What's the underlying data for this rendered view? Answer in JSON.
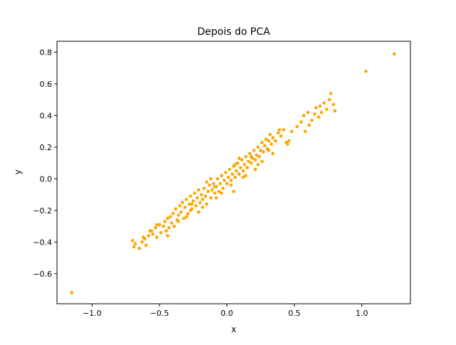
{
  "chart_data": {
    "type": "scatter",
    "title": "Depois do PCA",
    "xlabel": "x",
    "ylabel": "y",
    "xlim": [
      -1.26,
      1.36
    ],
    "ylim": [
      -0.79,
      0.87
    ],
    "grid": false,
    "marker_color": "#ffa500",
    "xticks": [
      {
        "value": -1.0,
        "label": "−1.0"
      },
      {
        "value": -0.5,
        "label": "−0.5"
      },
      {
        "value": 0.0,
        "label": "0.0"
      },
      {
        "value": 0.5,
        "label": "0.5"
      },
      {
        "value": 1.0,
        "label": "1.0"
      }
    ],
    "yticks": [
      {
        "value": -0.6,
        "label": "−0.6"
      },
      {
        "value": -0.4,
        "label": "−0.4"
      },
      {
        "value": -0.2,
        "label": "−0.2"
      },
      {
        "value": 0.0,
        "label": "0.0"
      },
      {
        "value": 0.2,
        "label": "0.2"
      },
      {
        "value": 0.4,
        "label": "0.4"
      },
      {
        "value": 0.6,
        "label": "0.6"
      },
      {
        "value": 0.8,
        "label": "0.8"
      }
    ],
    "points": [
      [
        -1.15,
        -0.72
      ],
      [
        1.03,
        0.68
      ],
      [
        1.24,
        0.79
      ],
      [
        -0.7,
        -0.39
      ],
      [
        -0.69,
        -0.43
      ],
      [
        -0.68,
        -0.41
      ],
      [
        -0.65,
        -0.44
      ],
      [
        -0.63,
        -0.4
      ],
      [
        -0.62,
        -0.37
      ],
      [
        -0.6,
        -0.42
      ],
      [
        -0.58,
        -0.36
      ],
      [
        -0.57,
        -0.33
      ],
      [
        -0.55,
        -0.35
      ],
      [
        -0.53,
        -0.31
      ],
      [
        -0.52,
        -0.37
      ],
      [
        -0.5,
        -0.29
      ],
      [
        -0.49,
        -0.34
      ],
      [
        -0.47,
        -0.3
      ],
      [
        -0.46,
        -0.27
      ],
      [
        -0.45,
        -0.33
      ],
      [
        -0.44,
        -0.25
      ],
      [
        -0.43,
        -0.31
      ],
      [
        -0.42,
        -0.24
      ],
      [
        -0.41,
        -0.28
      ],
      [
        -0.4,
        -0.22
      ],
      [
        -0.39,
        -0.3
      ],
      [
        -0.38,
        -0.19
      ],
      [
        -0.37,
        -0.26
      ],
      [
        -0.36,
        -0.23
      ],
      [
        -0.35,
        -0.17
      ],
      [
        -0.34,
        -0.21
      ],
      [
        -0.33,
        -0.15
      ],
      [
        -0.32,
        -0.25
      ],
      [
        -0.31,
        -0.18
      ],
      [
        -0.3,
        -0.13
      ],
      [
        -0.29,
        -0.22
      ],
      [
        -0.28,
        -0.16
      ],
      [
        -0.27,
        -0.11
      ],
      [
        -0.26,
        -0.19
      ],
      [
        -0.25,
        -0.14
      ],
      [
        -0.24,
        -0.09
      ],
      [
        -0.23,
        -0.17
      ],
      [
        -0.22,
        -0.12
      ],
      [
        -0.21,
        -0.07
      ],
      [
        -0.2,
        -0.15
      ],
      [
        -0.19,
        -0.1
      ],
      [
        -0.18,
        -0.13
      ],
      [
        -0.17,
        -0.06
      ],
      [
        -0.16,
        -0.11
      ],
      [
        -0.15,
        -0.16
      ],
      [
        -0.14,
        -0.08
      ],
      [
        -0.13,
        -0.04
      ],
      [
        -0.12,
        -0.12
      ],
      [
        -0.11,
        -0.07
      ],
      [
        -0.1,
        -0.03
      ],
      [
        -0.09,
        -0.09
      ],
      [
        -0.08,
        -0.05
      ],
      [
        -0.07,
        0.0
      ],
      [
        -0.06,
        -0.08
      ],
      [
        -0.05,
        -0.03
      ],
      [
        -0.04,
        0.02
      ],
      [
        -0.03,
        -0.06
      ],
      [
        -0.02,
        -0.01
      ],
      [
        -0.01,
        0.04
      ],
      [
        0.0,
        -0.03
      ],
      [
        0.01,
        0.01
      ],
      [
        0.02,
        0.06
      ],
      [
        0.03,
        -0.01
      ],
      [
        0.04,
        0.03
      ],
      [
        0.05,
        0.08
      ],
      [
        0.06,
        0.01
      ],
      [
        0.07,
        0.05
      ],
      [
        0.08,
        0.1
      ],
      [
        0.09,
        0.03
      ],
      [
        0.1,
        0.07
      ],
      [
        0.11,
        0.12
      ],
      [
        0.12,
        0.05
      ],
      [
        0.13,
        0.09
      ],
      [
        0.14,
        0.14
      ],
      [
        0.15,
        0.07
      ],
      [
        0.16,
        0.11
      ],
      [
        0.17,
        0.16
      ],
      [
        0.18,
        0.1
      ],
      [
        0.19,
        0.13
      ],
      [
        0.2,
        0.18
      ],
      [
        0.21,
        0.12
      ],
      [
        0.22,
        0.15
      ],
      [
        0.23,
        0.2
      ],
      [
        0.24,
        0.14
      ],
      [
        0.25,
        0.18
      ],
      [
        0.26,
        0.23
      ],
      [
        0.27,
        0.17
      ],
      [
        0.28,
        0.21
      ],
      [
        0.29,
        0.25
      ],
      [
        0.3,
        0.19
      ],
      [
        0.31,
        0.24
      ],
      [
        0.32,
        0.28
      ],
      [
        0.33,
        0.22
      ],
      [
        0.34,
        0.26
      ],
      [
        0.36,
        0.24
      ],
      [
        0.38,
        0.29
      ],
      [
        0.4,
        0.27
      ],
      [
        0.42,
        0.31
      ],
      [
        0.45,
        0.22
      ],
      [
        0.48,
        0.3
      ],
      [
        0.52,
        0.33
      ],
      [
        0.55,
        0.36
      ],
      [
        0.57,
        0.4
      ],
      [
        0.58,
        0.3
      ],
      [
        0.6,
        0.42
      ],
      [
        0.61,
        0.34
      ],
      [
        0.63,
        0.37
      ],
      [
        0.65,
        0.41
      ],
      [
        0.66,
        0.45
      ],
      [
        0.68,
        0.39
      ],
      [
        0.7,
        0.42
      ],
      [
        0.72,
        0.48
      ],
      [
        0.74,
        0.44
      ],
      [
        0.76,
        0.5
      ],
      [
        0.77,
        0.54
      ],
      [
        0.79,
        0.47
      ],
      [
        0.8,
        0.43
      ],
      [
        0.69,
        0.46
      ],
      [
        -0.52,
        -0.29
      ],
      [
        -0.36,
        -0.27
      ],
      [
        -0.27,
        -0.2
      ],
      [
        -0.18,
        -0.18
      ],
      [
        -0.08,
        -0.12
      ],
      [
        0.03,
        -0.04
      ],
      [
        0.12,
        0.01
      ],
      [
        0.21,
        0.06
      ],
      [
        0.34,
        0.16
      ],
      [
        0.44,
        0.23
      ],
      [
        -0.44,
        -0.36
      ],
      [
        -0.21,
        -0.21
      ],
      [
        0.05,
        -0.08
      ],
      [
        0.26,
        0.11
      ],
      [
        -0.12,
        0.0
      ],
      [
        0.09,
        0.13
      ],
      [
        0.31,
        0.18
      ],
      [
        -0.3,
        -0.24
      ],
      [
        0.14,
        0.02
      ],
      [
        -0.04,
        -0.09
      ],
      [
        0.18,
        0.14
      ],
      [
        -0.15,
        -0.02
      ],
      [
        0.39,
        0.31
      ],
      [
        -0.56,
        -0.33
      ],
      [
        0.46,
        0.24
      ],
      [
        -0.61,
        -0.38
      ],
      [
        0.06,
        0.09
      ],
      [
        -0.26,
        -0.16
      ],
      [
        0.23,
        0.09
      ],
      [
        -0.09,
        -0.05
      ]
    ]
  }
}
